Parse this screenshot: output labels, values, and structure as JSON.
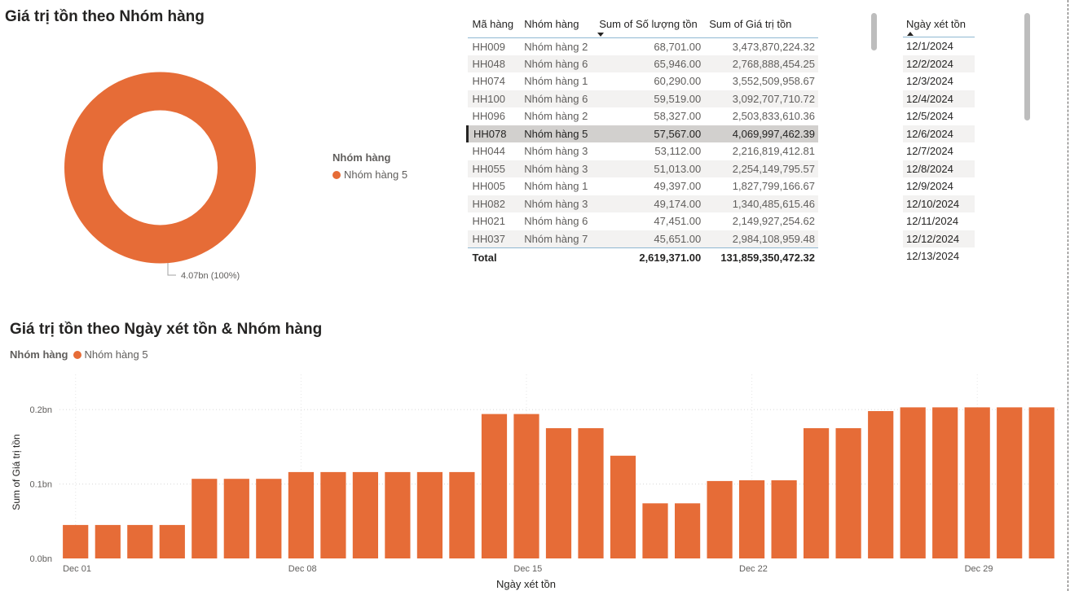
{
  "donut": {
    "title": "Giá trị tồn theo Nhóm hàng",
    "legend_title": "Nhóm hàng",
    "legend_item": "Nhóm hàng 5",
    "data_label": "4.07bn (100%)",
    "color": "#E66C37"
  },
  "table": {
    "headers": [
      "Mã hàng",
      "Nhóm hàng",
      "Sum of Số lượng tồn",
      "Sum of Giá trị tồn"
    ],
    "rows": [
      [
        "HH009",
        "Nhóm hàng 2",
        "68,701.00",
        "3,473,870,224.32"
      ],
      [
        "HH048",
        "Nhóm hàng 6",
        "65,946.00",
        "2,768,888,454.25"
      ],
      [
        "HH074",
        "Nhóm hàng 1",
        "60,290.00",
        "3,552,509,958.67"
      ],
      [
        "HH100",
        "Nhóm hàng 6",
        "59,519.00",
        "3,092,707,710.72"
      ],
      [
        "HH096",
        "Nhóm hàng 2",
        "58,327.00",
        "2,503,833,610.36"
      ],
      [
        "HH078",
        "Nhóm hàng 5",
        "57,567.00",
        "4,069,997,462.39"
      ],
      [
        "HH044",
        "Nhóm hàng 3",
        "53,112.00",
        "2,216,819,412.81"
      ],
      [
        "HH055",
        "Nhóm hàng 3",
        "51,013.00",
        "2,254,149,795.57"
      ],
      [
        "HH005",
        "Nhóm hàng 1",
        "49,397.00",
        "1,827,799,166.67"
      ],
      [
        "HH082",
        "Nhóm hàng 3",
        "49,174.00",
        "1,340,485,615.46"
      ],
      [
        "HH021",
        "Nhóm hàng 6",
        "47,451.00",
        "2,149,927,254.62"
      ],
      [
        "HH037",
        "Nhóm hàng 7",
        "45,651.00",
        "2,984,108,959.48"
      ]
    ],
    "total": [
      "Total",
      "",
      "2,619,371.00",
      "131,859,350,472.32"
    ],
    "selected_row": 5
  },
  "slicer": {
    "header": "Ngày xét tồn",
    "items": [
      "12/1/2024",
      "12/2/2024",
      "12/3/2024",
      "12/4/2024",
      "12/5/2024",
      "12/6/2024",
      "12/7/2024",
      "12/8/2024",
      "12/9/2024",
      "12/10/2024",
      "12/11/2024",
      "12/12/2024",
      "12/13/2024"
    ]
  },
  "bar_chart": {
    "title": "Giá trị tồn theo Ngày xét tồn & Nhóm hàng",
    "legend_title": "Nhóm hàng",
    "legend_item": "Nhóm hàng 5"
  },
  "chart_data": {
    "type": "bar",
    "title": "Giá trị tồn theo Ngày xét tồn & Nhóm hàng",
    "xlabel": "Ngày xét tồn",
    "ylabel": "Sum of Giá trị tồn",
    "ylim": [
      0,
      0.245
    ],
    "unit": "bn",
    "yticks": [
      "0.0bn",
      "0.1bn",
      "0.2bn"
    ],
    "ytick_values": [
      0,
      0.1,
      0.2
    ],
    "xtick_labels": [
      "Dec 01",
      "Dec 08",
      "Dec 15",
      "Dec 22",
      "Dec 29"
    ],
    "xtick_index": [
      0,
      7,
      14,
      21,
      28
    ],
    "grid": true,
    "legend": "top-left",
    "color": "#E66C37",
    "categories": [
      "12/1",
      "12/2",
      "12/3",
      "12/4",
      "12/5",
      "12/6",
      "12/7",
      "12/8",
      "12/9",
      "12/10",
      "12/11",
      "12/12",
      "12/13",
      "12/14",
      "12/15",
      "12/16",
      "12/17",
      "12/18",
      "12/19",
      "12/20",
      "12/21",
      "12/22",
      "12/23",
      "12/24",
      "12/25",
      "12/26",
      "12/27",
      "12/28",
      "12/29",
      "12/30",
      "12/31"
    ],
    "series": [
      {
        "name": "Nhóm hàng 5",
        "values": [
          0.045,
          0.045,
          0.045,
          0.045,
          0.107,
          0.107,
          0.107,
          0.116,
          0.116,
          0.116,
          0.116,
          0.116,
          0.116,
          0.194,
          0.194,
          0.175,
          0.175,
          0.138,
          0.074,
          0.074,
          0.104,
          0.105,
          0.105,
          0.175,
          0.175,
          0.198,
          0.203,
          0.203,
          0.203,
          0.203,
          0.203
        ]
      }
    ]
  }
}
